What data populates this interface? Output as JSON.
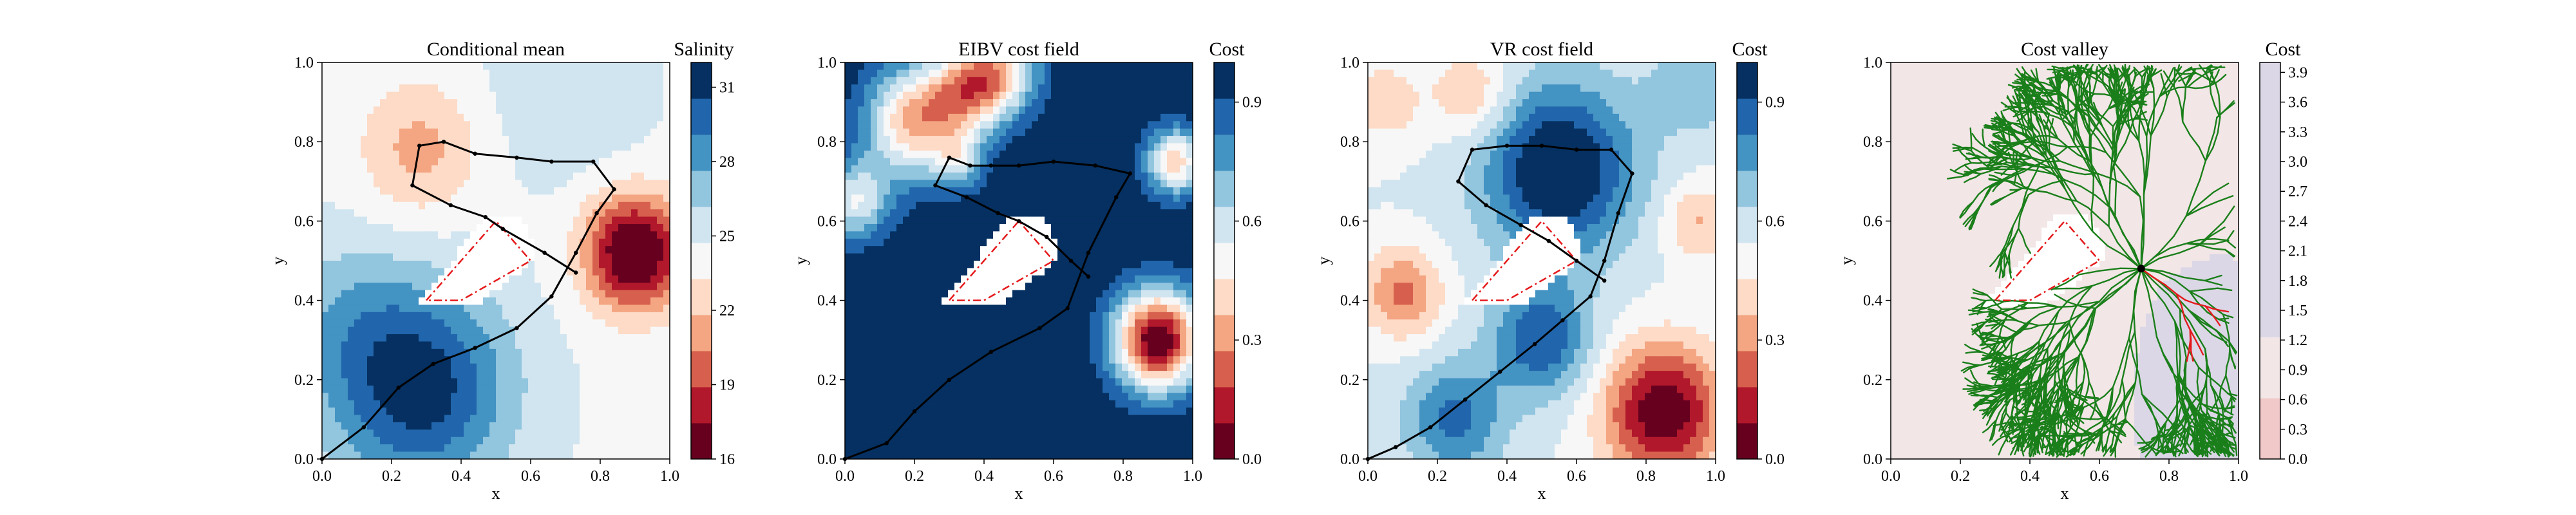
{
  "chart_data": [
    {
      "type": "heatmap",
      "title": "Conditional mean",
      "xlabel": "x",
      "ylabel": "y",
      "xlim": [
        0.0,
        1.0
      ],
      "ylim": [
        0.0,
        1.0
      ],
      "xticks": [
        "0.0",
        "0.2",
        "0.4",
        "0.6",
        "0.8",
        "1.0"
      ],
      "yticks": [
        "0.0",
        "0.2",
        "0.4",
        "0.6",
        "0.8",
        "1.0"
      ],
      "colorbar": {
        "label": "Salinity",
        "range": [
          16,
          32
        ],
        "ticks": [
          16,
          19,
          22,
          25,
          28,
          31
        ],
        "colormap": "RdBu"
      },
      "field": {
        "base": 24.5,
        "sources": [
          {
            "x": 0.9,
            "y": 0.52,
            "amp": -9.5,
            "s": 0.1
          },
          {
            "x": 0.28,
            "y": 0.78,
            "amp": -3.2,
            "s": 0.12
          },
          {
            "x": 0.28,
            "y": 0.18,
            "amp": 7.0,
            "s": 0.18
          },
          {
            "x": 0.05,
            "y": 0.35,
            "amp": 2.0,
            "s": 0.15
          },
          {
            "x": 0.7,
            "y": 0.92,
            "amp": 1.5,
            "s": 0.15
          }
        ]
      },
      "obstacle": [
        [
          0.3,
          0.4
        ],
        [
          0.5,
          0.6
        ],
        [
          0.6,
          0.5
        ],
        [
          0.4,
          0.4
        ]
      ],
      "path": [
        [
          0.0,
          0.0
        ],
        [
          0.12,
          0.08
        ],
        [
          0.22,
          0.18
        ],
        [
          0.32,
          0.24
        ],
        [
          0.44,
          0.28
        ],
        [
          0.56,
          0.33
        ],
        [
          0.66,
          0.41
        ],
        [
          0.73,
          0.52
        ],
        [
          0.79,
          0.62
        ],
        [
          0.84,
          0.68
        ],
        [
          0.78,
          0.75
        ],
        [
          0.66,
          0.75
        ],
        [
          0.56,
          0.76
        ],
        [
          0.44,
          0.77
        ],
        [
          0.35,
          0.8
        ],
        [
          0.28,
          0.79
        ],
        [
          0.26,
          0.69
        ],
        [
          0.37,
          0.64
        ],
        [
          0.47,
          0.61
        ],
        [
          0.52,
          0.58
        ],
        [
          0.64,
          0.52
        ],
        [
          0.73,
          0.47
        ]
      ]
    },
    {
      "type": "heatmap",
      "title": "EIBV cost field",
      "xlabel": "x",
      "ylabel": "y",
      "xlim": [
        0.0,
        1.0
      ],
      "ylim": [
        0.0,
        1.0
      ],
      "xticks": [
        "0.0",
        "0.2",
        "0.4",
        "0.6",
        "0.8",
        "1.0"
      ],
      "yticks": [
        "0.0",
        "0.2",
        "0.4",
        "0.6",
        "0.8",
        "1.0"
      ],
      "colorbar": {
        "label": "Cost",
        "range": [
          0.0,
          1.0
        ],
        "ticks": [
          "0.0",
          "0.3",
          "0.6",
          "0.9"
        ],
        "colormap": "RdBu"
      },
      "field": {
        "base": 1.0,
        "sources": [
          {
            "x": 0.9,
            "y": 0.3,
            "amp": -1.0,
            "s": 0.09
          },
          {
            "x": 0.2,
            "y": 0.85,
            "amp": -0.65,
            "s": 0.1
          },
          {
            "x": 0.35,
            "y": 0.93,
            "amp": -0.5,
            "s": 0.08
          },
          {
            "x": 0.45,
            "y": 0.98,
            "amp": -0.5,
            "s": 0.08
          },
          {
            "x": 0.03,
            "y": 0.65,
            "amp": -0.45,
            "s": 0.07
          },
          {
            "x": 0.95,
            "y": 0.75,
            "amp": -0.6,
            "s": 0.06
          },
          {
            "x": 0.33,
            "y": 0.75,
            "amp": -0.3,
            "s": 0.05
          }
        ]
      },
      "obstacle": [
        [
          0.3,
          0.4
        ],
        [
          0.5,
          0.6
        ],
        [
          0.6,
          0.5
        ],
        [
          0.4,
          0.4
        ]
      ],
      "path": [
        [
          0.0,
          0.0
        ],
        [
          0.12,
          0.04
        ],
        [
          0.2,
          0.12
        ],
        [
          0.3,
          0.2
        ],
        [
          0.42,
          0.27
        ],
        [
          0.56,
          0.33
        ],
        [
          0.64,
          0.38
        ],
        [
          0.7,
          0.52
        ],
        [
          0.78,
          0.66
        ],
        [
          0.82,
          0.72
        ],
        [
          0.72,
          0.74
        ],
        [
          0.6,
          0.75
        ],
        [
          0.5,
          0.74
        ],
        [
          0.42,
          0.74
        ],
        [
          0.36,
          0.74
        ],
        [
          0.3,
          0.76
        ],
        [
          0.26,
          0.69
        ],
        [
          0.35,
          0.66
        ],
        [
          0.44,
          0.62
        ],
        [
          0.5,
          0.6
        ],
        [
          0.58,
          0.56
        ],
        [
          0.65,
          0.5
        ],
        [
          0.7,
          0.46
        ]
      ]
    },
    {
      "type": "heatmap",
      "title": "VR cost field",
      "xlabel": "x",
      "ylabel": "y",
      "xlim": [
        0.0,
        1.0
      ],
      "ylim": [
        0.0,
        1.0
      ],
      "xticks": [
        "0.0",
        "0.2",
        "0.4",
        "0.6",
        "0.8",
        "1.0"
      ],
      "yticks": [
        "0.0",
        "0.2",
        "0.4",
        "0.6",
        "0.8",
        "1.0"
      ],
      "colorbar": {
        "label": "Cost",
        "range": [
          0.0,
          1.0
        ],
        "ticks": [
          "0.0",
          "0.3",
          "0.6",
          "0.9"
        ],
        "colormap": "RdBu"
      },
      "field": {
        "base": 0.55,
        "sources": [
          {
            "x": 0.85,
            "y": 0.12,
            "amp": -0.55,
            "s": 0.12
          },
          {
            "x": 0.1,
            "y": 0.42,
            "amp": -0.3,
            "s": 0.08
          },
          {
            "x": 0.3,
            "y": 0.92,
            "amp": -0.2,
            "s": 0.08
          },
          {
            "x": 0.05,
            "y": 0.9,
            "amp": -0.15,
            "s": 0.08
          },
          {
            "x": 0.95,
            "y": 0.6,
            "amp": -0.2,
            "s": 0.07
          },
          {
            "x": 0.55,
            "y": 0.73,
            "amp": 0.5,
            "s": 0.15
          },
          {
            "x": 0.5,
            "y": 0.3,
            "amp": 0.35,
            "s": 0.1
          },
          {
            "x": 0.25,
            "y": 0.1,
            "amp": 0.3,
            "s": 0.1
          },
          {
            "x": 0.95,
            "y": 0.95,
            "amp": 0.15,
            "s": 0.1
          }
        ]
      },
      "obstacle": [
        [
          0.3,
          0.4
        ],
        [
          0.5,
          0.6
        ],
        [
          0.6,
          0.5
        ],
        [
          0.4,
          0.4
        ]
      ],
      "path": [
        [
          0.0,
          0.0
        ],
        [
          0.08,
          0.03
        ],
        [
          0.18,
          0.08
        ],
        [
          0.28,
          0.15
        ],
        [
          0.38,
          0.22
        ],
        [
          0.48,
          0.29
        ],
        [
          0.56,
          0.35
        ],
        [
          0.64,
          0.41
        ],
        [
          0.68,
          0.5
        ],
        [
          0.72,
          0.62
        ],
        [
          0.76,
          0.72
        ],
        [
          0.7,
          0.78
        ],
        [
          0.6,
          0.78
        ],
        [
          0.5,
          0.79
        ],
        [
          0.4,
          0.79
        ],
        [
          0.3,
          0.78
        ],
        [
          0.26,
          0.7
        ],
        [
          0.34,
          0.64
        ],
        [
          0.44,
          0.59
        ],
        [
          0.52,
          0.55
        ],
        [
          0.6,
          0.5
        ],
        [
          0.68,
          0.45
        ]
      ]
    },
    {
      "type": "heatmap",
      "title": "Cost valley",
      "xlabel": "x",
      "ylabel": "y",
      "xlim": [
        0.0,
        1.0
      ],
      "ylim": [
        0.0,
        1.0
      ],
      "xticks": [
        "0.0",
        "0.2",
        "0.4",
        "0.6",
        "0.8",
        "1.0"
      ],
      "yticks": [
        "0.0",
        "0.2",
        "0.4",
        "0.6",
        "0.8",
        "1.0"
      ],
      "colorbar": {
        "label": "Cost",
        "range": [
          0.0,
          4.0
        ],
        "ticks": [
          "0.0",
          "0.3",
          "0.6",
          "0.9",
          "1.2",
          "1.5",
          "1.8",
          "2.1",
          "2.4",
          "2.7",
          "3.0",
          "3.3",
          "3.6",
          "3.9"
        ],
        "colormap": "RdBu"
      },
      "field": {
        "base": 1.5,
        "sources": [
          {
            "x": 0.95,
            "y": 0.3,
            "amp": 0.8,
            "s": 0.15
          },
          {
            "x": 0.85,
            "y": 0.05,
            "amp": 0.4,
            "s": 0.15
          }
        ]
      },
      "tree_root": [
        0.72,
        0.48
      ],
      "obstacle": [
        [
          0.3,
          0.4
        ],
        [
          0.5,
          0.6
        ],
        [
          0.6,
          0.5
        ],
        [
          0.4,
          0.4
        ]
      ]
    }
  ],
  "style": {
    "path_color": "#000000",
    "obstacle_edge_color": "#e41a1c",
    "tree_color": "#1a7f1a",
    "tree_highlight_color": "#e41a1c"
  }
}
